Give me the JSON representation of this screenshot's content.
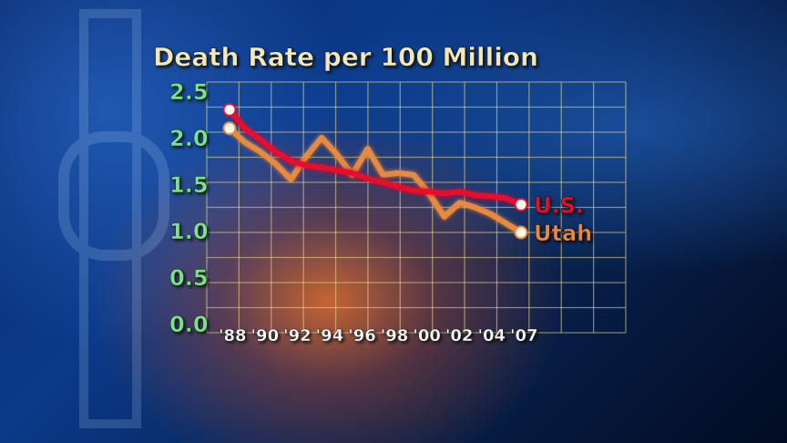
{
  "chart_data": {
    "type": "line",
    "title": "Death Rate per 100 Million",
    "xlabel": "",
    "ylabel": "",
    "ylim": [
      0.0,
      2.5
    ],
    "yticks": [
      "0.0",
      "0.5",
      "1.0",
      "1.5",
      "2.0",
      "2.5"
    ],
    "xticks": [
      "'88",
      "'90",
      "'92",
      "'94",
      "'96",
      "'98",
      "'00",
      "'02",
      "'04",
      "'07"
    ],
    "grid": true,
    "x": [
      1988,
      1989,
      1990,
      1991,
      1992,
      1993,
      1994,
      1995,
      1996,
      1997,
      1998,
      1999,
      2000,
      2001,
      2002,
      2003,
      2004,
      2005,
      2006,
      2007
    ],
    "series": [
      {
        "name": "U.S.",
        "color": "#e8102a",
        "values": [
          2.3,
          2.1,
          1.98,
          1.85,
          1.75,
          1.7,
          1.68,
          1.65,
          1.62,
          1.56,
          1.52,
          1.47,
          1.43,
          1.42,
          1.4,
          1.42,
          1.38,
          1.37,
          1.35,
          1.28
        ]
      },
      {
        "name": "Utah",
        "color": "#e88a3c",
        "values": [
          2.1,
          1.95,
          1.85,
          1.72,
          1.55,
          1.8,
          2.0,
          1.82,
          1.6,
          1.88,
          1.6,
          1.62,
          1.6,
          1.4,
          1.15,
          1.3,
          1.25,
          1.18,
          1.08,
          0.98
        ]
      }
    ]
  }
}
